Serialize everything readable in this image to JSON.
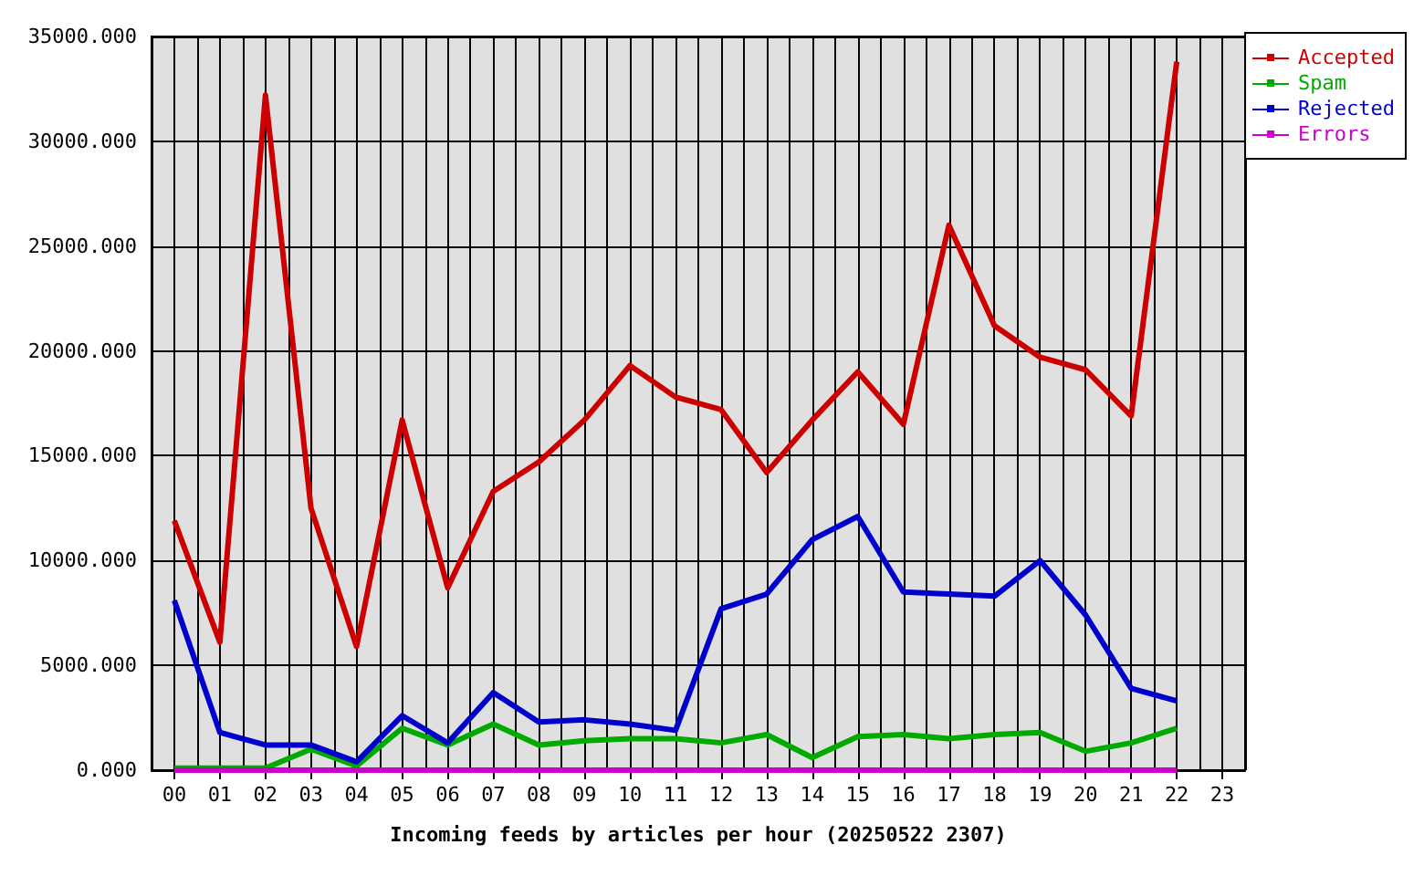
{
  "chart_data": {
    "type": "line",
    "xlabel": "Incoming feeds by articles per hour (20250522 2307)",
    "categories": [
      "00",
      "01",
      "02",
      "03",
      "04",
      "05",
      "06",
      "07",
      "08",
      "09",
      "10",
      "11",
      "12",
      "13",
      "14",
      "15",
      "16",
      "17",
      "18",
      "19",
      "20",
      "21",
      "22",
      "23"
    ],
    "series": [
      {
        "name": "Accepted",
        "color": "#cc0000",
        "values": [
          11900,
          6100,
          32200,
          12500,
          5900,
          16700,
          8700,
          13300,
          14700,
          16700,
          19300,
          17800,
          17200,
          14200,
          16700,
          19000,
          16500,
          26000,
          21200,
          19700,
          19100,
          16900,
          33800,
          null
        ]
      },
      {
        "name": "Spam",
        "color": "#00aa00",
        "values": [
          100,
          100,
          100,
          1000,
          200,
          2000,
          1200,
          2200,
          1200,
          1400,
          1500,
          1500,
          1300,
          1700,
          600,
          1600,
          1700,
          1500,
          1700,
          1800,
          900,
          1300,
          2000,
          null
        ]
      },
      {
        "name": "Rejected",
        "color": "#0000cc",
        "values": [
          8100,
          1800,
          1200,
          1200,
          400,
          2600,
          1300,
          3700,
          2300,
          2400,
          2200,
          1900,
          7700,
          8400,
          11000,
          12100,
          8500,
          8400,
          8300,
          10000,
          7400,
          3900,
          3300,
          null
        ]
      },
      {
        "name": "Errors",
        "color": "#cc00cc",
        "values": [
          0,
          0,
          0,
          0,
          0,
          0,
          0,
          0,
          0,
          0,
          0,
          0,
          0,
          0,
          0,
          0,
          0,
          0,
          0,
          0,
          0,
          0,
          0,
          null
        ]
      }
    ],
    "ylim": [
      0,
      35000
    ],
    "yticks": [
      {
        "value": 0,
        "label": "0.000"
      },
      {
        "value": 5000,
        "label": "5000.000"
      },
      {
        "value": 10000,
        "label": "10000.000"
      },
      {
        "value": 15000,
        "label": "15000.000"
      },
      {
        "value": 20000,
        "label": "20000.000"
      },
      {
        "value": 25000,
        "label": "25000.000"
      },
      {
        "value": 30000,
        "label": "30000.000"
      },
      {
        "value": 35000,
        "label": "35000.000"
      }
    ],
    "grid": true,
    "legend": "top right"
  }
}
